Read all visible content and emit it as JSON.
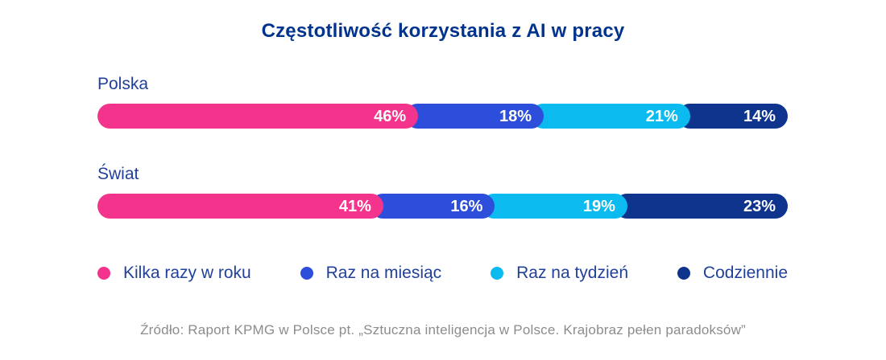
{
  "title": "Częstotliwość korzystania z AI w pracy",
  "colors": {
    "title_text": "#00338D",
    "category_text": "#21409A",
    "legend_text": "#21409A",
    "segment_value_text": "#FFFFFF",
    "source_text": "#8C8C8C",
    "background": "#FFFFFF"
  },
  "chart_data": {
    "type": "bar",
    "variant": "horizontal-stacked-pill",
    "title": "Częstotliwość korzystania z AI w pracy",
    "categories": [
      "Polska",
      "Świat"
    ],
    "series": [
      {
        "name": "Kilka razy w roku",
        "color": "#F4348C",
        "values": [
          46,
          41
        ]
      },
      {
        "name": "Raz na miesiąc",
        "color": "#2C4EDA",
        "values": [
          18,
          16
        ]
      },
      {
        "name": "Raz na tydzień",
        "color": "#0BBBEF",
        "values": [
          21,
          19
        ]
      },
      {
        "name": "Codziennie",
        "color": "#0F348D",
        "values": [
          14,
          23
        ]
      }
    ],
    "value_suffix": "%",
    "value_labels": "inside-end",
    "legend_position": "bottom",
    "grid": false,
    "axes": false
  },
  "source": "Źródło: Raport KPMG w Polsce pt. „Sztuczna inteligencja w Polsce. Krajobraz pełen paradoksów”"
}
